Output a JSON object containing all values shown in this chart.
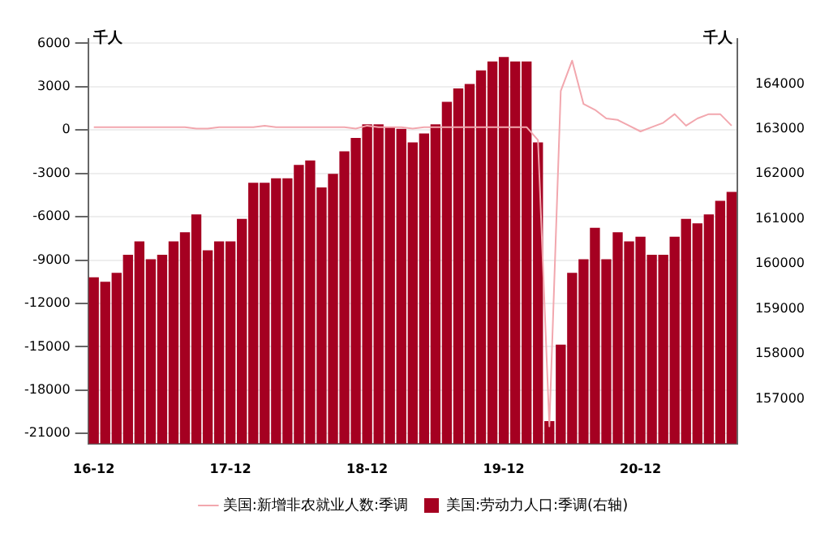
{
  "chart_data": {
    "type": "bar",
    "ylabel": "千人",
    "y2label": "千人",
    "categories": [
      "16-12",
      null,
      null,
      null,
      null,
      null,
      null,
      null,
      null,
      null,
      null,
      null,
      "17-12",
      null,
      null,
      null,
      null,
      null,
      null,
      null,
      null,
      null,
      null,
      null,
      "18-12",
      null,
      null,
      null,
      null,
      null,
      null,
      null,
      null,
      null,
      null,
      null,
      "19-12",
      null,
      null,
      null,
      null,
      null,
      null,
      null,
      null,
      null,
      null,
      null,
      "20-12",
      null,
      null,
      null,
      null,
      null,
      null,
      null,
      null
    ],
    "series": [
      {
        "name": "美国:新增非农就业人数:季调",
        "type": "line",
        "axis": "y",
        "color": "#f2a7ae",
        "values": [
          200,
          200,
          200,
          200,
          200,
          200,
          200,
          200,
          200,
          100,
          100,
          200,
          200,
          200,
          200,
          300,
          200,
          200,
          200,
          200,
          200,
          200,
          200,
          100,
          300,
          200,
          200,
          200,
          100,
          200,
          200,
          200,
          200,
          200,
          200,
          200,
          200,
          200,
          200,
          -700,
          -20500,
          2700,
          4800,
          1800,
          1400,
          800,
          700,
          300,
          -100,
          200,
          500,
          1100,
          300,
          800,
          1100,
          1100,
          300
        ]
      },
      {
        "name": "美国:劳动力人口:季调(右轴)",
        "axis": "y2",
        "color": "#a50021",
        "values": [
          159700,
          159600,
          159800,
          160200,
          160500,
          160100,
          160200,
          160500,
          160700,
          161100,
          160300,
          160500,
          160500,
          161000,
          161800,
          161800,
          161900,
          161900,
          162200,
          162300,
          161700,
          162000,
          162500,
          162800,
          163100,
          163100,
          163050,
          163000,
          162700,
          162900,
          163100,
          163600,
          163900,
          164000,
          164300,
          164500,
          164600,
          164500,
          164500,
          162700,
          156500,
          158200,
          159800,
          160100,
          160800,
          160100,
          160700,
          160500,
          160600,
          160200,
          160200,
          160600,
          161000,
          160900,
          161100,
          161400,
          161600
        ]
      }
    ],
    "ylim": [
      -21700,
      6300
    ],
    "yticks": [
      6000,
      3000,
      0,
      -3000,
      -6000,
      -9000,
      -12000,
      -15000,
      -18000,
      -21000
    ],
    "y2lim": [
      156000,
      165000
    ],
    "y2ticks": [
      157000,
      158000,
      159000,
      160000,
      161000,
      162000,
      163000,
      164000
    ],
    "grid": "y",
    "legend": "bottom",
    "marker": "none",
    "line_style": "solid"
  }
}
